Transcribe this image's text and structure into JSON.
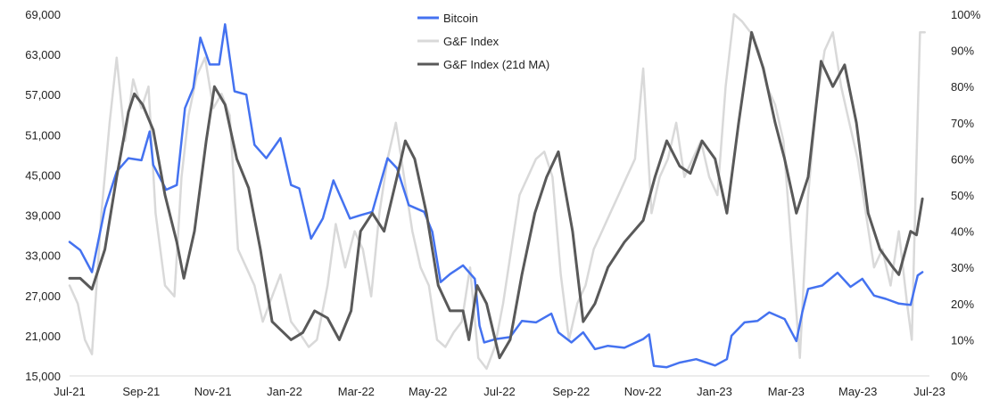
{
  "chart_data": {
    "type": "line",
    "title": "",
    "xlabel": "",
    "ylabel": "",
    "x_ticks": [
      "Jul-21",
      "Sep-21",
      "Nov-21",
      "Jan-22",
      "Mar-22",
      "May-22",
      "Jul-22",
      "Sep-22",
      "Nov-22",
      "Jan-23",
      "Mar-23",
      "May-23",
      "Jul-23"
    ],
    "x_range": [
      "2021-07-01",
      "2023-07-01"
    ],
    "y_left": {
      "ticks": [
        "15,000",
        "21,000",
        "27,000",
        "33,000",
        "39,000",
        "45,000",
        "51,000",
        "57,000",
        "63,000",
        "69,000"
      ],
      "range": [
        15000,
        69000
      ]
    },
    "y_right": {
      "ticks": [
        "0%",
        "10%",
        "20%",
        "30%",
        "40%",
        "50%",
        "60%",
        "70%",
        "80%",
        "90%",
        "100%"
      ],
      "range": [
        0,
        100
      ],
      "unit": "%"
    },
    "grid": false,
    "legend": {
      "position": "top-center",
      "entries": [
        {
          "label": "Bitcoin",
          "color": "#4472F0"
        },
        {
          "label": "G&F Index",
          "color": "#D9D9D9"
        },
        {
          "label": "G&F Index (21d MA)",
          "color": "#595959"
        }
      ]
    },
    "series": [
      {
        "name": "Bitcoin",
        "axis": "left",
        "color": "#4472F0",
        "points": [
          [
            "2021-07-01",
            35000
          ],
          [
            "2021-07-10",
            33800
          ],
          [
            "2021-07-20",
            30500
          ],
          [
            "2021-07-31",
            40000
          ],
          [
            "2021-08-10",
            45500
          ],
          [
            "2021-08-20",
            47500
          ],
          [
            "2021-08-31",
            47200
          ],
          [
            "2021-09-07",
            51500
          ],
          [
            "2021-09-10",
            46500
          ],
          [
            "2021-09-21",
            42800
          ],
          [
            "2021-09-30",
            43500
          ],
          [
            "2021-10-07",
            55000
          ],
          [
            "2021-10-14",
            58000
          ],
          [
            "2021-10-20",
            65500
          ],
          [
            "2021-10-28",
            61500
          ],
          [
            "2021-11-05",
            61500
          ],
          [
            "2021-11-10",
            67500
          ],
          [
            "2021-11-18",
            57500
          ],
          [
            "2021-11-28",
            57000
          ],
          [
            "2021-12-05",
            49500
          ],
          [
            "2021-12-15",
            47500
          ],
          [
            "2021-12-27",
            50500
          ],
          [
            "2022-01-05",
            43500
          ],
          [
            "2022-01-12",
            43000
          ],
          [
            "2022-01-22",
            35500
          ],
          [
            "2022-02-01",
            38500
          ],
          [
            "2022-02-10",
            44200
          ],
          [
            "2022-02-24",
            38500
          ],
          [
            "2022-03-05",
            39000
          ],
          [
            "2022-03-15",
            39500
          ],
          [
            "2022-03-28",
            47500
          ],
          [
            "2022-04-05",
            46000
          ],
          [
            "2022-04-15",
            40500
          ],
          [
            "2022-04-28",
            39500
          ],
          [
            "2022-05-05",
            36500
          ],
          [
            "2022-05-12",
            29000
          ],
          [
            "2022-05-20",
            30200
          ],
          [
            "2022-05-31",
            31500
          ],
          [
            "2022-06-10",
            29500
          ],
          [
            "2022-06-14",
            22500
          ],
          [
            "2022-06-18",
            20000
          ],
          [
            "2022-06-28",
            20500
          ],
          [
            "2022-07-10",
            20800
          ],
          [
            "2022-07-20",
            23200
          ],
          [
            "2022-08-01",
            23000
          ],
          [
            "2022-08-14",
            24300
          ],
          [
            "2022-08-20",
            21500
          ],
          [
            "2022-08-31",
            20000
          ],
          [
            "2022-09-10",
            21500
          ],
          [
            "2022-09-20",
            19000
          ],
          [
            "2022-10-01",
            19500
          ],
          [
            "2022-10-15",
            19200
          ],
          [
            "2022-10-31",
            20500
          ],
          [
            "2022-11-05",
            21200
          ],
          [
            "2022-11-09",
            16500
          ],
          [
            "2022-11-20",
            16300
          ],
          [
            "2022-12-01",
            17000
          ],
          [
            "2022-12-15",
            17500
          ],
          [
            "2022-12-31",
            16550
          ],
          [
            "2023-01-10",
            17500
          ],
          [
            "2023-01-14",
            21000
          ],
          [
            "2023-01-25",
            23000
          ],
          [
            "2023-02-05",
            23200
          ],
          [
            "2023-02-15",
            24500
          ],
          [
            "2023-02-28",
            23500
          ],
          [
            "2023-03-10",
            20200
          ],
          [
            "2023-03-15",
            24500
          ],
          [
            "2023-03-20",
            28000
          ],
          [
            "2023-04-01",
            28500
          ],
          [
            "2023-04-14",
            30400
          ],
          [
            "2023-04-25",
            28300
          ],
          [
            "2023-05-05",
            29500
          ],
          [
            "2023-05-15",
            27000
          ],
          [
            "2023-05-25",
            26500
          ],
          [
            "2023-06-05",
            25800
          ],
          [
            "2023-06-15",
            25600
          ],
          [
            "2023-06-21",
            30000
          ],
          [
            "2023-06-25",
            30500
          ]
        ]
      },
      {
        "name": "G&F Index",
        "axis": "right",
        "color": "#D9D9D9",
        "points": [
          [
            "2021-07-01",
            25
          ],
          [
            "2021-07-08",
            20
          ],
          [
            "2021-07-14",
            10
          ],
          [
            "2021-07-20",
            6
          ],
          [
            "2021-07-28",
            45
          ],
          [
            "2021-08-04",
            70
          ],
          [
            "2021-08-10",
            88
          ],
          [
            "2021-08-17",
            65
          ],
          [
            "2021-08-24",
            82
          ],
          [
            "2021-08-31",
            74
          ],
          [
            "2021-09-06",
            80
          ],
          [
            "2021-09-12",
            45
          ],
          [
            "2021-09-20",
            25
          ],
          [
            "2021-09-28",
            22
          ],
          [
            "2021-10-04",
            55
          ],
          [
            "2021-10-10",
            72
          ],
          [
            "2021-10-17",
            83
          ],
          [
            "2021-10-24",
            88
          ],
          [
            "2021-10-31",
            74
          ],
          [
            "2021-11-07",
            78
          ],
          [
            "2021-11-14",
            72
          ],
          [
            "2021-11-21",
            35
          ],
          [
            "2021-11-28",
            30
          ],
          [
            "2021-12-05",
            25
          ],
          [
            "2021-12-12",
            15
          ],
          [
            "2021-12-20",
            22
          ],
          [
            "2021-12-27",
            28
          ],
          [
            "2022-01-05",
            15
          ],
          [
            "2022-01-12",
            12
          ],
          [
            "2022-01-20",
            8
          ],
          [
            "2022-01-27",
            10
          ],
          [
            "2022-02-05",
            25
          ],
          [
            "2022-02-12",
            42
          ],
          [
            "2022-02-20",
            30
          ],
          [
            "2022-02-28",
            40
          ],
          [
            "2022-03-07",
            35
          ],
          [
            "2022-03-14",
            22
          ],
          [
            "2022-03-21",
            45
          ],
          [
            "2022-03-28",
            60
          ],
          [
            "2022-04-04",
            70
          ],
          [
            "2022-04-11",
            55
          ],
          [
            "2022-04-18",
            40
          ],
          [
            "2022-04-25",
            30
          ],
          [
            "2022-05-02",
            25
          ],
          [
            "2022-05-09",
            10
          ],
          [
            "2022-05-16",
            8
          ],
          [
            "2022-05-23",
            12
          ],
          [
            "2022-05-30",
            15
          ],
          [
            "2022-06-06",
            30
          ],
          [
            "2022-06-13",
            5
          ],
          [
            "2022-06-20",
            2
          ],
          [
            "2022-06-27",
            8
          ],
          [
            "2022-07-04",
            20
          ],
          [
            "2022-07-11",
            35
          ],
          [
            "2022-07-18",
            50
          ],
          [
            "2022-07-25",
            55
          ],
          [
            "2022-08-01",
            60
          ],
          [
            "2022-08-08",
            62
          ],
          [
            "2022-08-15",
            55
          ],
          [
            "2022-08-22",
            28
          ],
          [
            "2022-08-29",
            10
          ],
          [
            "2022-09-05",
            20
          ],
          [
            "2022-09-12",
            25
          ],
          [
            "2022-09-19",
            35
          ],
          [
            "2022-09-26",
            40
          ],
          [
            "2022-10-03",
            45
          ],
          [
            "2022-10-10",
            50
          ],
          [
            "2022-10-17",
            55
          ],
          [
            "2022-10-24",
            60
          ],
          [
            "2022-10-31",
            85
          ],
          [
            "2022-11-07",
            45
          ],
          [
            "2022-11-14",
            55
          ],
          [
            "2022-11-21",
            60
          ],
          [
            "2022-11-28",
            70
          ],
          [
            "2022-12-05",
            55
          ],
          [
            "2022-12-12",
            60
          ],
          [
            "2022-12-19",
            65
          ],
          [
            "2022-12-26",
            55
          ],
          [
            "2023-01-02",
            50
          ],
          [
            "2023-01-09",
            80
          ],
          [
            "2023-01-16",
            100
          ],
          [
            "2023-01-23",
            98
          ],
          [
            "2023-01-30",
            95
          ],
          [
            "2023-02-06",
            90
          ],
          [
            "2023-02-13",
            80
          ],
          [
            "2023-02-20",
            75
          ],
          [
            "2023-02-27",
            65
          ],
          [
            "2023-03-06",
            35
          ],
          [
            "2023-03-13",
            5
          ],
          [
            "2023-03-20",
            50
          ],
          [
            "2023-03-27",
            75
          ],
          [
            "2023-04-03",
            90
          ],
          [
            "2023-04-10",
            95
          ],
          [
            "2023-04-17",
            80
          ],
          [
            "2023-04-24",
            70
          ],
          [
            "2023-05-01",
            60
          ],
          [
            "2023-05-08",
            45
          ],
          [
            "2023-05-15",
            30
          ],
          [
            "2023-05-22",
            35
          ],
          [
            "2023-05-29",
            25
          ],
          [
            "2023-06-05",
            40
          ],
          [
            "2023-06-12",
            20
          ],
          [
            "2023-06-16",
            10
          ],
          [
            "2023-06-20",
            60
          ],
          [
            "2023-06-23",
            95
          ],
          [
            "2023-06-27",
            95
          ]
        ]
      },
      {
        "name": "G&F Index (21d MA)",
        "axis": "right",
        "color": "#595959",
        "points": [
          [
            "2021-07-01",
            27
          ],
          [
            "2021-07-10",
            27
          ],
          [
            "2021-07-20",
            24
          ],
          [
            "2021-07-31",
            35
          ],
          [
            "2021-08-10",
            55
          ],
          [
            "2021-08-20",
            73
          ],
          [
            "2021-08-25",
            78
          ],
          [
            "2021-09-01",
            75
          ],
          [
            "2021-09-10",
            68
          ],
          [
            "2021-09-20",
            50
          ],
          [
            "2021-09-30",
            37
          ],
          [
            "2021-10-06",
            27
          ],
          [
            "2021-10-15",
            40
          ],
          [
            "2021-10-25",
            65
          ],
          [
            "2021-11-01",
            80
          ],
          [
            "2021-11-10",
            75
          ],
          [
            "2021-11-20",
            60
          ],
          [
            "2021-11-30",
            52
          ],
          [
            "2021-12-10",
            35
          ],
          [
            "2021-12-20",
            15
          ],
          [
            "2022-01-05",
            10
          ],
          [
            "2022-01-15",
            12
          ],
          [
            "2022-01-25",
            18
          ],
          [
            "2022-02-05",
            16
          ],
          [
            "2022-02-15",
            10
          ],
          [
            "2022-02-25",
            18
          ],
          [
            "2022-03-05",
            40
          ],
          [
            "2022-03-15",
            45
          ],
          [
            "2022-03-25",
            40
          ],
          [
            "2022-04-05",
            55
          ],
          [
            "2022-04-12",
            65
          ],
          [
            "2022-04-20",
            60
          ],
          [
            "2022-04-30",
            45
          ],
          [
            "2022-05-10",
            25
          ],
          [
            "2022-05-20",
            18
          ],
          [
            "2022-05-31",
            18
          ],
          [
            "2022-06-05",
            10
          ],
          [
            "2022-06-12",
            25
          ],
          [
            "2022-06-20",
            20
          ],
          [
            "2022-07-01",
            5
          ],
          [
            "2022-07-10",
            10
          ],
          [
            "2022-07-20",
            28
          ],
          [
            "2022-07-31",
            45
          ],
          [
            "2022-08-10",
            55
          ],
          [
            "2022-08-20",
            62
          ],
          [
            "2022-09-01",
            40
          ],
          [
            "2022-09-10",
            15
          ],
          [
            "2022-09-20",
            20
          ],
          [
            "2022-10-01",
            30
          ],
          [
            "2022-10-15",
            37
          ],
          [
            "2022-10-31",
            43
          ],
          [
            "2022-11-10",
            55
          ],
          [
            "2022-11-20",
            65
          ],
          [
            "2022-12-01",
            58
          ],
          [
            "2022-12-10",
            56
          ],
          [
            "2022-12-20",
            65
          ],
          [
            "2022-12-31",
            60
          ],
          [
            "2023-01-10",
            45
          ],
          [
            "2023-01-20",
            70
          ],
          [
            "2023-01-31",
            95
          ],
          [
            "2023-02-10",
            85
          ],
          [
            "2023-02-20",
            70
          ],
          [
            "2023-02-28",
            60
          ],
          [
            "2023-03-10",
            45
          ],
          [
            "2023-03-20",
            55
          ],
          [
            "2023-03-31",
            87
          ],
          [
            "2023-04-10",
            80
          ],
          [
            "2023-04-20",
            86
          ],
          [
            "2023-04-30",
            70
          ],
          [
            "2023-05-10",
            45
          ],
          [
            "2023-05-20",
            35
          ],
          [
            "2023-05-31",
            30
          ],
          [
            "2023-06-05",
            28
          ],
          [
            "2023-06-15",
            40
          ],
          [
            "2023-06-20",
            39
          ],
          [
            "2023-06-25",
            49
          ]
        ]
      }
    ]
  }
}
